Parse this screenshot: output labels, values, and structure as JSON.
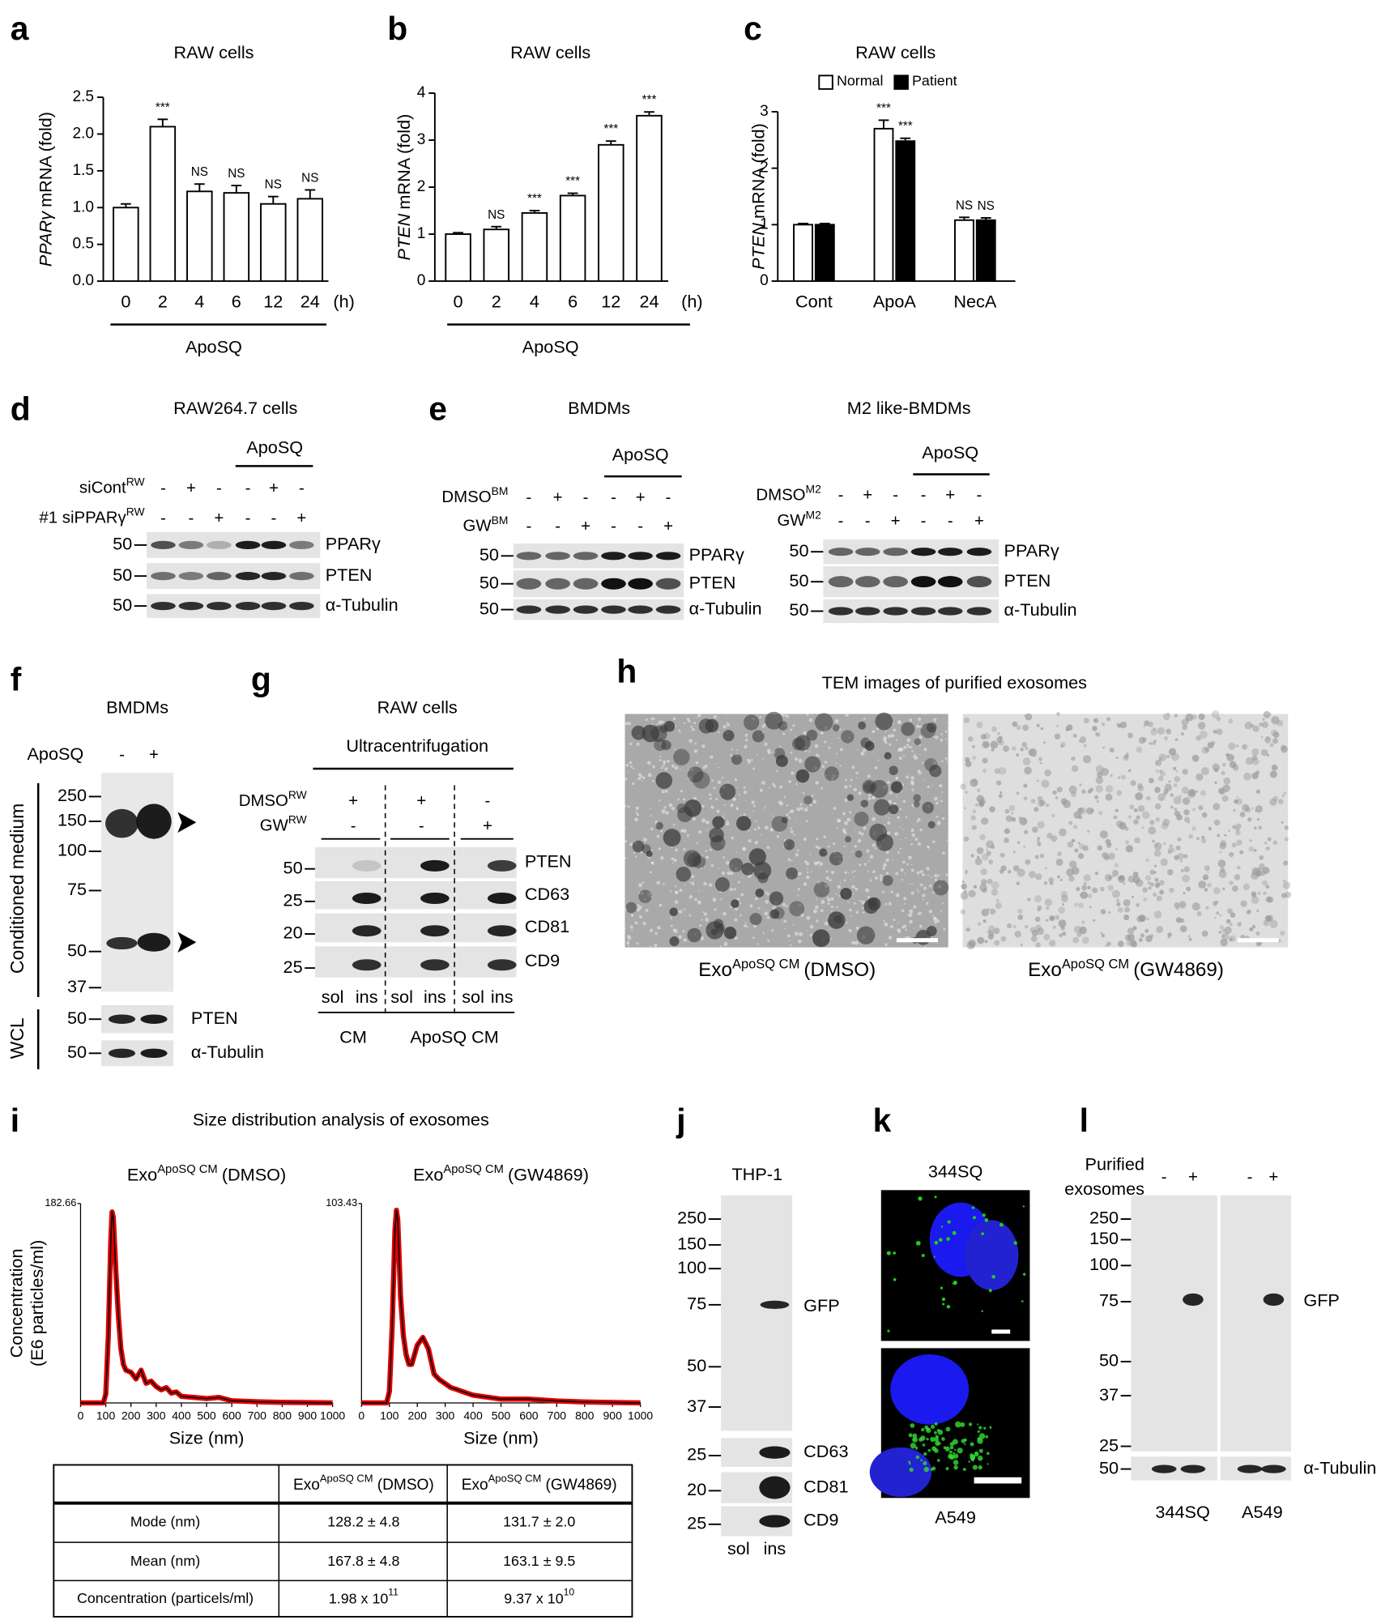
{
  "chart_data": [
    {
      "type": "bar",
      "panel_label": "a",
      "title": "RAW cells",
      "ylabel_gene": "PPARγ",
      "ylabel": "mRNA (fold)",
      "categories": [
        "0",
        "2",
        "4",
        "6",
        "12",
        "24"
      ],
      "x_unit": "(h)",
      "group_label": "ApoSQ",
      "values": [
        1.0,
        2.1,
        1.22,
        1.2,
        1.05,
        1.12
      ],
      "errors": [
        0.05,
        0.1,
        0.1,
        0.1,
        0.1,
        0.12
      ],
      "annotations": [
        null,
        "***",
        "NS",
        "NS",
        "NS",
        "NS"
      ],
      "color": "#ffffff",
      "ylim": [
        0,
        2.5
      ],
      "yticks": [
        {
          "value": 0,
          "label": "0.0"
        },
        {
          "value": 0.5,
          "label": "0.5"
        },
        {
          "value": 1,
          "label": "1.0"
        },
        {
          "value": 1.5,
          "label": "1.5"
        },
        {
          "value": 2,
          "label": "2.0"
        },
        {
          "value": 2.5,
          "label": "2.5"
        }
      ]
    },
    {
      "type": "bar",
      "panel_label": "b",
      "title": "RAW cells",
      "ylabel_gene": "PTEN",
      "ylabel": "mRNA (fold)",
      "categories": [
        "0",
        "2",
        "4",
        "6",
        "12",
        "24"
      ],
      "x_unit": "(h)",
      "group_label": "ApoSQ",
      "values": [
        1.0,
        1.1,
        1.45,
        1.82,
        2.9,
        3.52
      ],
      "errors": [
        0.03,
        0.06,
        0.05,
        0.05,
        0.08,
        0.08
      ],
      "annotations": [
        null,
        "NS",
        "***",
        "***",
        "***",
        "***"
      ],
      "color": "#ffffff",
      "ylim": [
        0,
        4
      ],
      "yticks": [
        0,
        1,
        2,
        3,
        4
      ]
    },
    {
      "type": "bar",
      "panel_label": "c",
      "title": "RAW cells",
      "ylabel_gene": "PTEN",
      "ylabel": "mRNA (fold)",
      "categories": [
        "Cont",
        "ApoA",
        "NecA"
      ],
      "legend": "top",
      "series": [
        {
          "name": "Normal",
          "color": "#ffffff",
          "values": [
            1.0,
            2.7,
            1.08
          ],
          "errors": [
            0.02,
            0.15,
            0.05
          ],
          "annotations": [
            null,
            "***",
            "NS"
          ]
        },
        {
          "name": "Patient",
          "color": "#000000",
          "values": [
            1.0,
            2.48,
            1.08
          ],
          "errors": [
            0.02,
            0.05,
            0.04
          ],
          "annotations": [
            null,
            "***",
            "NS"
          ]
        }
      ],
      "ylim": [
        0,
        3
      ],
      "yticks": [
        0,
        1,
        2,
        3
      ]
    },
    {
      "type": "line",
      "title": {
        "base": "Exo",
        "sup": "ApoSQ CM",
        "rest": "(DMSO)"
      },
      "ylabel": [
        "Concentration",
        "(E6 particles/ml)"
      ],
      "xlabel": "Size (nm)",
      "x": [
        0,
        50,
        90,
        100,
        110,
        120,
        125,
        130,
        140,
        150,
        160,
        170,
        180,
        200,
        220,
        240,
        260,
        280,
        300,
        320,
        340,
        360,
        380,
        400,
        450,
        500,
        550,
        600,
        700,
        800,
        900,
        1000
      ],
      "series": [
        {
          "color": "#000000",
          "band_color": "#e00000",
          "values": [
            0,
            0,
            0,
            8,
            60,
            150,
            175,
            170,
            120,
            80,
            50,
            35,
            30,
            28,
            22,
            30,
            18,
            20,
            15,
            12,
            14,
            9,
            10,
            6,
            5,
            4,
            5,
            2,
            1,
            0.5,
            0.3,
            0
          ]
        }
      ],
      "xlim": [
        0,
        1000
      ],
      "xticks": [
        0,
        100,
        200,
        300,
        400,
        500,
        600,
        700,
        800,
        900,
        1000
      ],
      "ylim": [
        0,
        182.66
      ],
      "yticks": [
        182.66
      ]
    },
    {
      "type": "line",
      "title": {
        "base": "Exo",
        "sup": "ApoSQ CM",
        "rest": "(GW4869)"
      },
      "xlabel": "Size (nm)",
      "x": [
        0,
        50,
        90,
        100,
        110,
        120,
        125,
        130,
        140,
        150,
        160,
        170,
        180,
        200,
        220,
        240,
        260,
        280,
        300,
        320,
        340,
        360,
        380,
        400,
        450,
        500,
        550,
        600,
        700,
        800,
        900,
        1000
      ],
      "series": [
        {
          "color": "#000000",
          "band_color": "#e00000",
          "values": [
            0,
            0,
            0,
            6,
            40,
            90,
            100,
            95,
            55,
            35,
            25,
            20,
            20,
            30,
            34,
            28,
            15,
            12,
            10,
            8,
            7,
            6,
            5,
            4,
            3,
            2,
            2,
            2,
            1,
            0.5,
            0.2,
            0
          ]
        }
      ],
      "xlim": [
        0,
        1000
      ],
      "xticks": [
        0,
        100,
        200,
        300,
        400,
        500,
        600,
        700,
        800,
        900,
        1000
      ],
      "ylim": [
        0,
        103.43
      ],
      "yticks": [
        103.43
      ]
    }
  ],
  "panels": {
    "d": {
      "label": "d",
      "title": "RAW264.7 cells",
      "treatment": "ApoSQ",
      "rows": [
        {
          "name": {
            "base": "siCont",
            "sup": "RW"
          },
          "signs": [
            "-",
            "+",
            "-",
            "-",
            "+",
            "-"
          ]
        },
        {
          "name": {
            "base": "#1 siPPARγ",
            "sup": "RW"
          },
          "signs": [
            "-",
            "-",
            "+",
            "-",
            "-",
            "+"
          ]
        }
      ],
      "proteins": [
        "PPARγ",
        "PTEN",
        "α-Tubulin"
      ],
      "mw": [
        "50",
        "50",
        "50"
      ]
    },
    "e": {
      "label": "e",
      "blots": [
        {
          "title": "BMDMs",
          "treatment": "ApoSQ",
          "rows": [
            {
              "name": {
                "base": "DMSO",
                "sup": "BM"
              },
              "signs": [
                "-",
                "+",
                "-",
                "-",
                "+",
                "-"
              ]
            },
            {
              "name": {
                "base": "GW",
                "sup": "BM"
              },
              "signs": [
                "-",
                "-",
                "+",
                "-",
                "-",
                "+"
              ]
            }
          ],
          "proteins": [
            "PPARγ",
            "PTEN",
            "α-Tubulin"
          ],
          "mw": [
            "50",
            "50",
            "50"
          ]
        },
        {
          "title": "M2 like-BMDMs",
          "treatment": "ApoSQ",
          "rows": [
            {
              "name": {
                "base": "DMSO",
                "sup": "M2"
              },
              "signs": [
                "-",
                "+",
                "-",
                "-",
                "+",
                "-"
              ]
            },
            {
              "name": {
                "base": "GW",
                "sup": "M2"
              },
              "signs": [
                "-",
                "-",
                "+",
                "-",
                "-",
                "+"
              ]
            }
          ],
          "proteins": [
            "PPARγ",
            "PTEN",
            "α-Tubulin"
          ],
          "mw": [
            "50",
            "50",
            "50"
          ]
        }
      ]
    },
    "f": {
      "label": "f",
      "title": "BMDMs",
      "treatment": "ApoSQ",
      "signs": [
        "-",
        "+"
      ],
      "section_cm": "Conditioned  medium",
      "section_wcl": "WCL",
      "mw_cm": [
        "250",
        "150",
        "100",
        "75",
        "50",
        "37"
      ],
      "mw_wcl": [
        "50",
        "50"
      ],
      "proteins": [
        "PTEN",
        "α-Tubulin"
      ]
    },
    "g": {
      "label": "g",
      "title": "RAW cells",
      "method": "Ultracentrifugation",
      "rows": [
        {
          "name": {
            "base": "DMSO",
            "sup": "RW"
          },
          "signs": [
            "+",
            "+",
            "-"
          ]
        },
        {
          "name": {
            "base": "GW",
            "sup": "RW"
          },
          "signs": [
            "-",
            "-",
            "+"
          ]
        }
      ],
      "proteins": [
        "PTEN",
        "CD63",
        "CD81",
        "CD9"
      ],
      "mw": [
        "50",
        "25",
        "20",
        "25"
      ],
      "lanes": [
        "sol",
        "ins",
        "sol",
        "ins",
        "sol",
        "ins"
      ],
      "groups": [
        "CM",
        "ApoSQ  CM"
      ]
    },
    "h": {
      "label": "h",
      "title": "TEM images of purified  exosomes",
      "captions": [
        {
          "base": "Exo",
          "sup": "ApoSQ CM",
          "rest": "(DMSO)"
        },
        {
          "base": "Exo",
          "sup": "ApoSQ CM",
          "rest": "(GW4869)"
        }
      ]
    },
    "i": {
      "label": "i",
      "title": "Size distribution analysis of exosomes",
      "table": {
        "header": [
          {
            "base": "Exo",
            "sup": "ApoSQ CM",
            "rest": "(DMSO)"
          },
          {
            "base": "Exo",
            "sup": "ApoSQ CM",
            "rest": "(GW4869)"
          }
        ],
        "rows": [
          [
            "Mode (nm)",
            "128.2 ± 4.8",
            "131.7 ± 2.0"
          ],
          [
            "Mean (nm)",
            "167.8 ± 4.8",
            "163.1 ± 9.5"
          ],
          [
            "Concentration (particels/ml)",
            {
              "base": "1.98 x 10",
              "sup": "11"
            },
            {
              "base": "9.37 x 10",
              "sup": "10"
            }
          ]
        ]
      }
    },
    "j": {
      "label": "j",
      "title": "THP-1",
      "mw_top": [
        "250",
        "150",
        "100",
        "75",
        "50",
        "37"
      ],
      "mw_bottom": [
        "25",
        "20",
        "25"
      ],
      "proteins": [
        "GFP",
        "CD63",
        "CD81",
        "CD9"
      ],
      "lanes": [
        "sol",
        "ins"
      ]
    },
    "k": {
      "label": "k",
      "cells": [
        "344SQ",
        "A549"
      ]
    },
    "l": {
      "label": "l",
      "treatment": [
        "Purified",
        "exosomes"
      ],
      "signs": [
        "-",
        "+",
        "-",
        "+"
      ],
      "mw": [
        "250",
        "150",
        "100",
        "75",
        "50",
        "37",
        "25"
      ],
      "mw_tubulin": "50",
      "proteins": [
        "GFP",
        "α-Tubulin"
      ],
      "cells": [
        "344SQ",
        "A549"
      ]
    }
  }
}
